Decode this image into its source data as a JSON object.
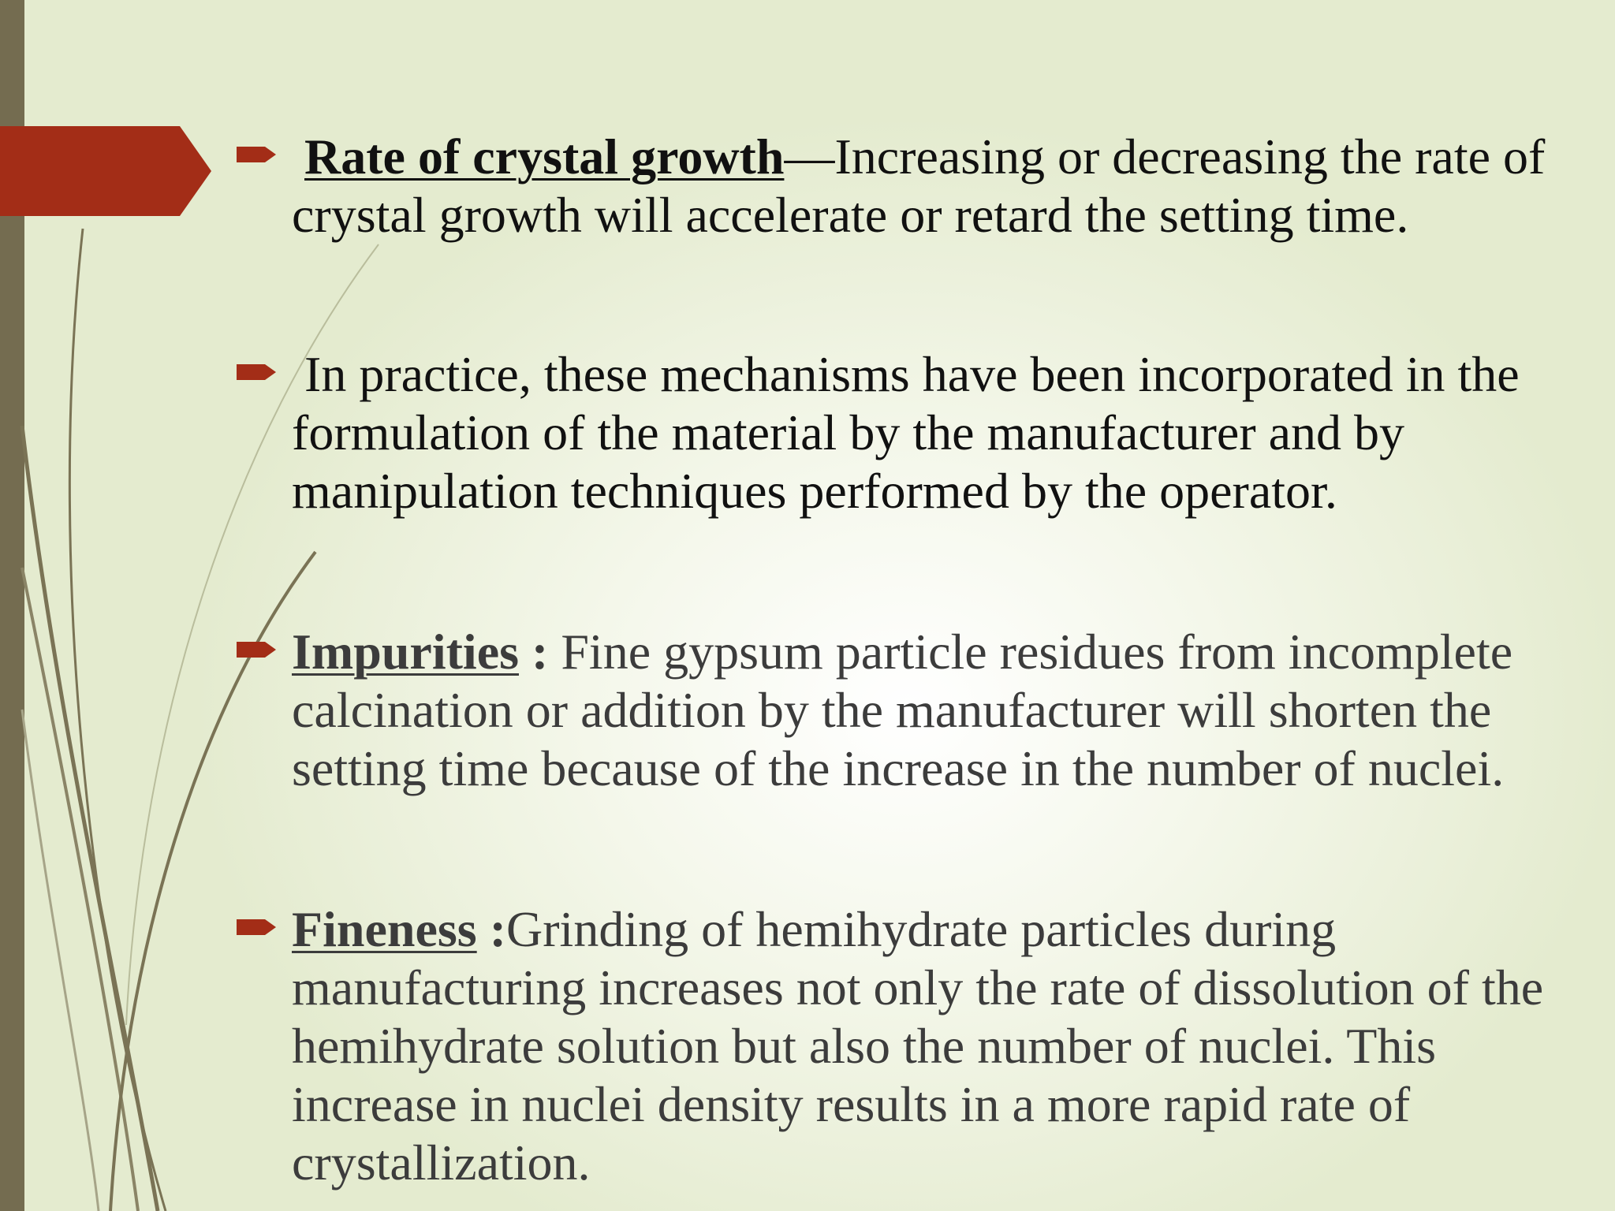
{
  "colors": {
    "accent": "#a32d17",
    "left_bar": "#746c50",
    "line_decor": "#7a7355"
  },
  "bullets": [
    {
      "term": "Rate of crystal growth",
      "separator": "",
      "text": "—Increasing or decreasing the rate of crystal growth will accelerate or retard the setting time."
    },
    {
      "term": "",
      "separator": "",
      "text": "In practice, these mechanisms have been incorporated in the formulation of the material by the manufacturer and by manipulation techniques performed by the operator."
    },
    {
      "term": "Impurities",
      "separator": " :",
      "text": " Fine gypsum particle residues from incomplete calcination or addition by the manufacturer will shorten the setting time because of the increase in the number of nuclei."
    },
    {
      "term": "Fineness",
      "separator": " :",
      "text": "Grinding of hemihydrate particles during manufacturing increases not only the rate of dissolution of the hemihydrate solution but also the number of nuclei. This increase in nuclei density results in a more rapid rate of crystallization."
    }
  ]
}
